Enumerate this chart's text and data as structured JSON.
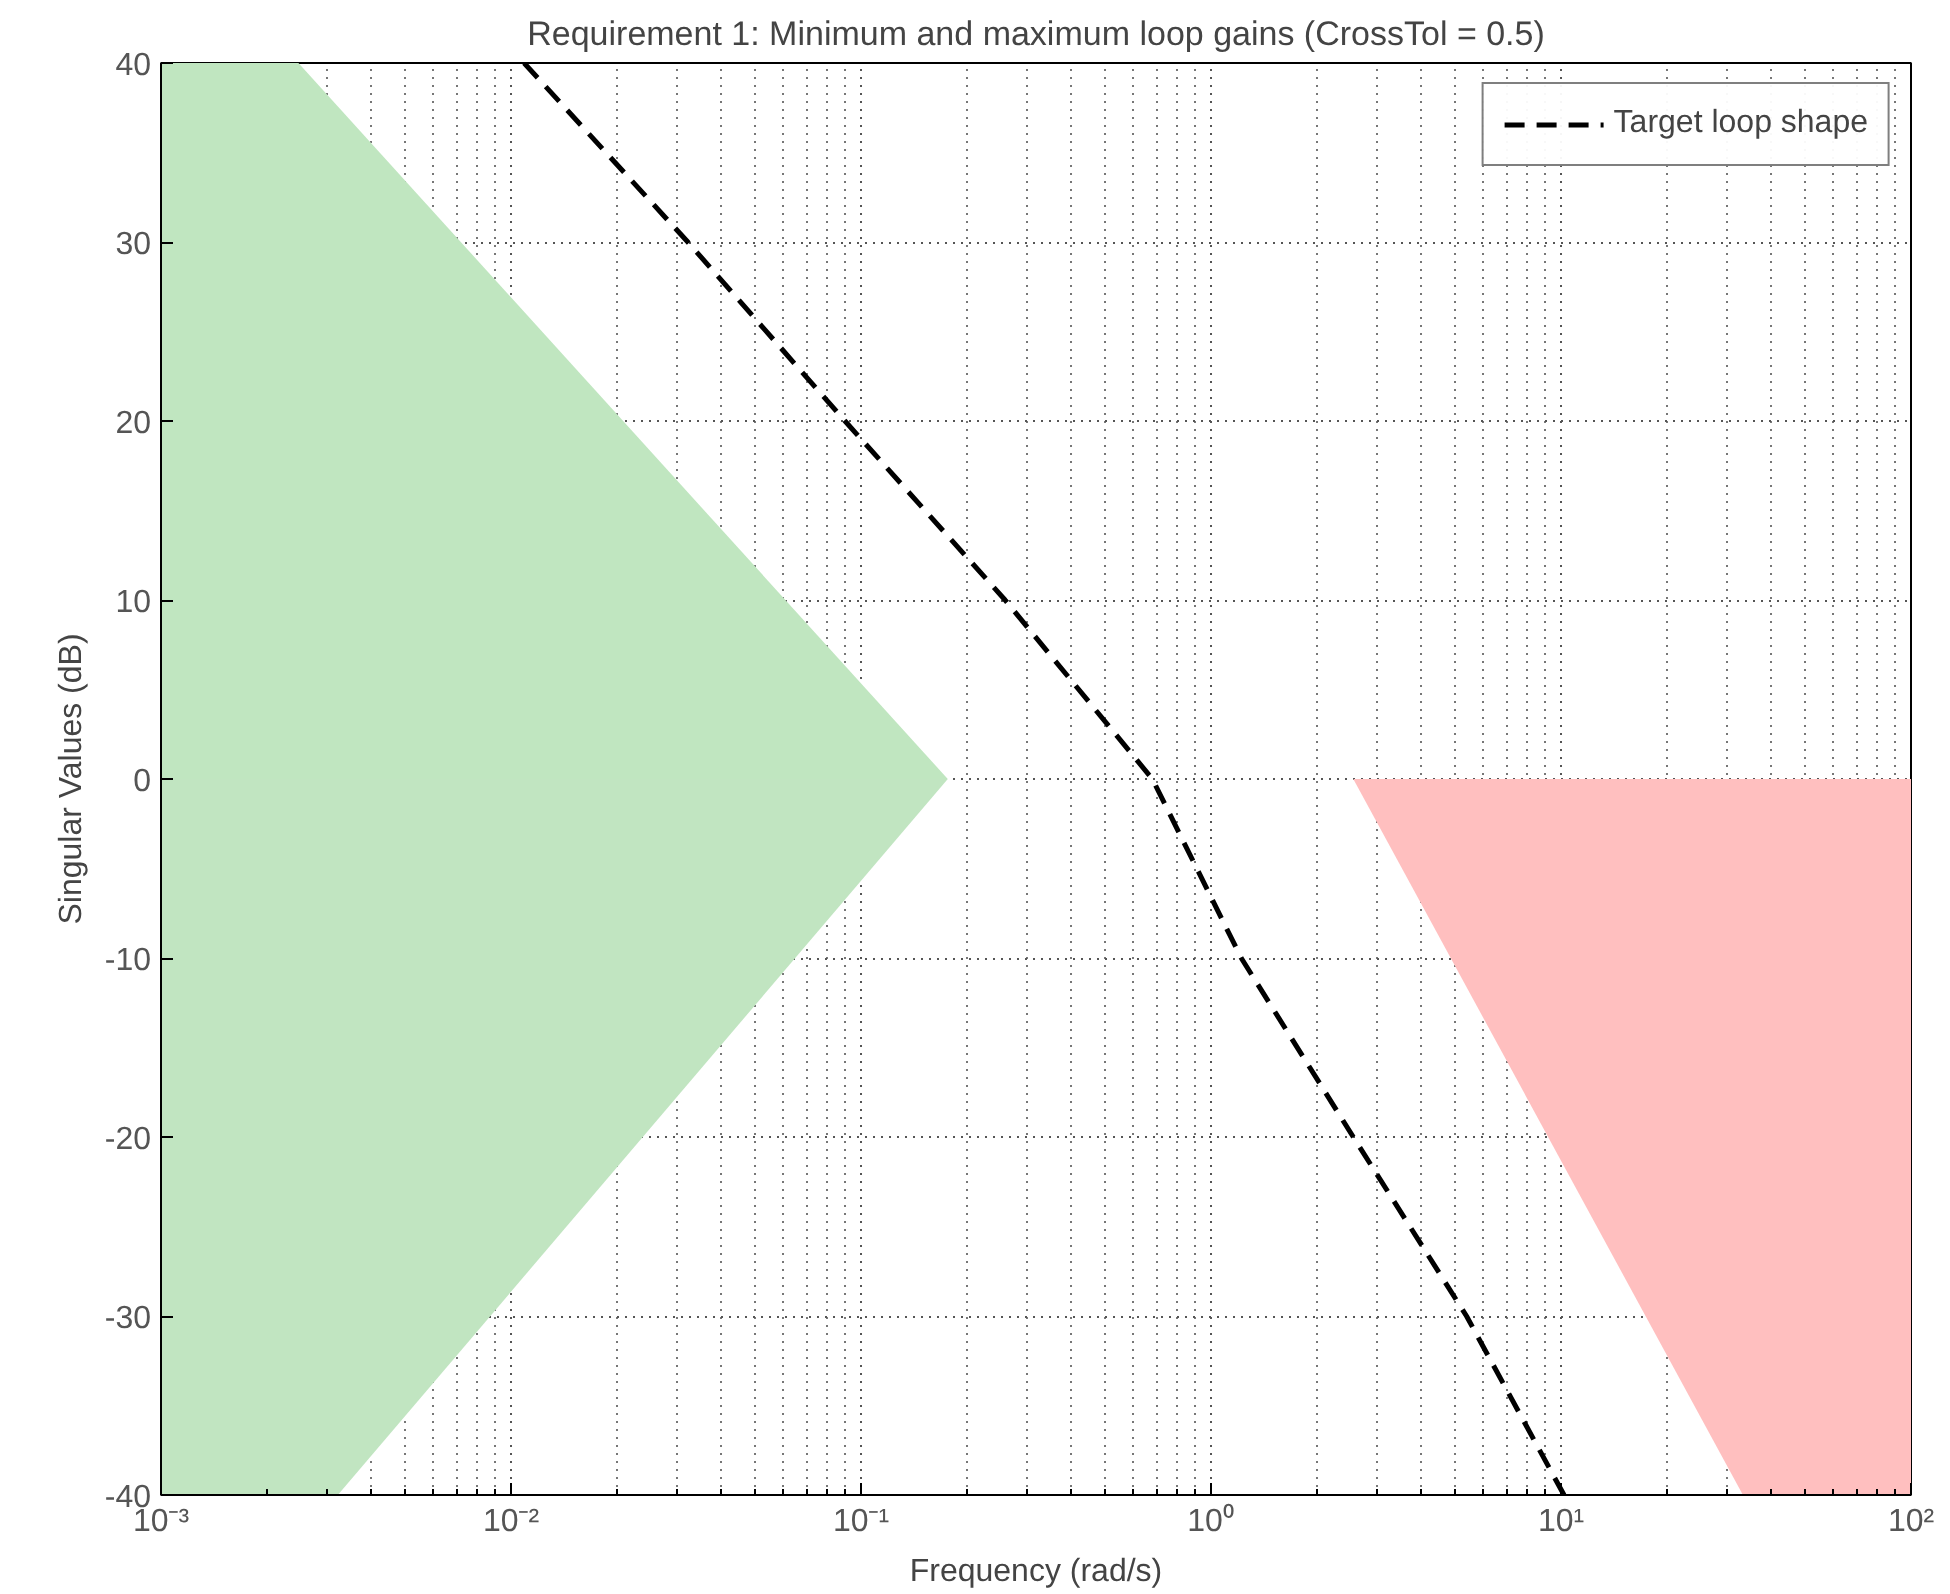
{
  "chart_data": {
    "type": "line",
    "title": "Requirement 1: Minimum and maximum loop gains (CrossTol = 0.5)",
    "xlabel": "Frequency (rad/s)",
    "ylabel": "Singular Values (dB)",
    "log": "x",
    "xlim": [
      0.001,
      100
    ],
    "ylim": [
      -40,
      40
    ],
    "xticks": [
      {
        "value": 0.001,
        "label": "10⁻³"
      },
      {
        "value": 0.01,
        "label": "10⁻²"
      },
      {
        "value": 0.1,
        "label": "10⁻¹"
      },
      {
        "value": 1,
        "label": "10⁰"
      },
      {
        "value": 10,
        "label": "10¹"
      },
      {
        "value": 100,
        "label": "10²"
      }
    ],
    "yticks": [
      -40,
      -30,
      -20,
      -10,
      0,
      10,
      20,
      30,
      40
    ],
    "grid": true,
    "legend": "top right",
    "line_style": "dashed",
    "series": [
      {
        "type": "area",
        "color": "#c0e6c0",
        "x": [
          0.001,
          0.00247,
          0.177
        ],
        "values": [
          40,
          40,
          0
        ]
      },
      {
        "type": "area",
        "color": "#c1e5c1",
        "x": [
          0.001,
          0.0032,
          0.177
        ],
        "values": [
          -40,
          -40,
          0
        ]
      },
      {
        "type": "area",
        "color": "#ffbfbf",
        "x": [
          2.55,
          33.1,
          100
        ],
        "values": [
          0,
          -40,
          -40
        ]
      },
      {
        "name": "Target loop shape",
        "color": "#000000",
        "x": [
          0.0109,
          0.032,
          0.09,
          0.258,
          0.68,
          1.22,
          2.55,
          5.37,
          10.2
        ],
        "values": [
          40,
          30,
          20,
          10,
          0,
          -10,
          -20,
          -30,
          -40
        ]
      }
    ]
  }
}
